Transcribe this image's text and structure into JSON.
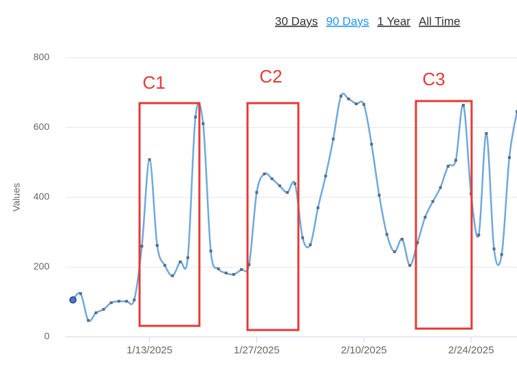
{
  "chart_data": {
    "type": "line",
    "buttons": [
      {
        "label": "30 Days",
        "active": false
      },
      {
        "label": "90 Days",
        "active": true
      },
      {
        "label": "1 Year",
        "active": false
      },
      {
        "label": "All Time",
        "active": false
      }
    ],
    "y_label": "Values",
    "annotations": [
      "C1",
      "C2",
      "C3"
    ],
    "x": [
      "1/3/2025",
      "1/4/2025",
      "1/5/2025",
      "1/6/2025",
      "1/7/2025",
      "1/8/2025",
      "1/9/2025",
      "1/10/2025",
      "1/11/2025",
      "1/12/2025",
      "1/13/2025",
      "1/14/2025",
      "1/15/2025",
      "1/16/2025",
      "1/17/2025",
      "1/18/2025",
      "1/19/2025",
      "1/20/2025",
      "1/21/2025",
      "1/22/2025",
      "1/23/2025",
      "1/24/2025",
      "1/25/2025",
      "1/26/2025",
      "1/27/2025",
      "1/28/2025",
      "1/29/2025",
      "1/30/2025",
      "1/31/2025",
      "2/1/2025",
      "2/2/2025",
      "2/3/2025",
      "2/4/2025",
      "2/5/2025",
      "2/6/2025",
      "2/7/2025",
      "2/8/2025",
      "2/9/2025",
      "2/10/2025",
      "2/11/2025",
      "2/12/2025",
      "2/13/2025",
      "2/14/2025",
      "2/15/2025",
      "2/16/2025",
      "2/17/2025",
      "2/18/2025",
      "2/19/2025",
      "2/20/2025",
      "2/21/2025",
      "2/22/2025",
      "2/23/2025",
      "2/24/2025",
      "2/25/2025",
      "2/26/2025",
      "2/27/2025",
      "2/28/2025",
      "3/1/2025",
      "3/2/2025"
    ],
    "series": [
      {
        "name": "Values",
        "color": "#6fa8dc",
        "values": [
          106,
          124,
          47,
          69,
          79,
          98,
          102,
          102,
          106,
          260,
          508,
          262,
          205,
          175,
          215,
          227,
          630,
          611,
          246,
          195,
          183,
          179,
          193,
          207,
          414,
          467,
          453,
          433,
          414,
          439,
          284,
          264,
          370,
          461,
          567,
          690,
          682,
          668,
          666,
          552,
          406,
          294,
          244,
          280,
          205,
          270,
          343,
          388,
          428,
          489,
          506,
          664,
          410,
          292,
          583,
          252,
          236,
          514,
          646
        ]
      }
    ],
    "xlim": [
      "1/2/2025",
      "3/2/2025"
    ],
    "xticks": [
      "1/13/2025",
      "1/27/2025",
      "2/10/2025",
      "2/24/2025"
    ],
    "ylim": [
      0,
      800
    ],
    "yticks": [
      0,
      200,
      400,
      600,
      800
    ],
    "grid": true
  }
}
